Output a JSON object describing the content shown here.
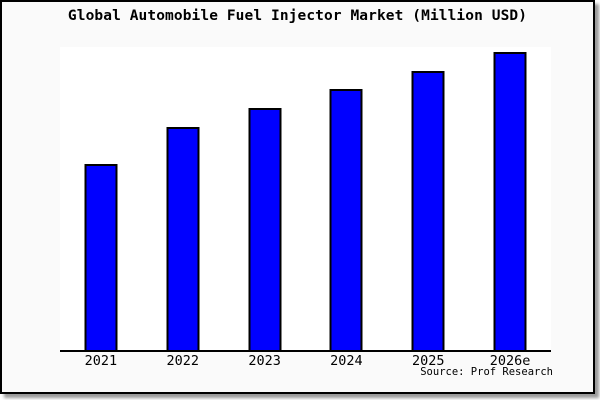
{
  "window": {
    "background": "#ffffff",
    "frame_background": "#fafafa",
    "frame_border_color": "#000000",
    "shadow_color": "#999999"
  },
  "source_note": "Source: Prof Research",
  "chart_data": {
    "type": "bar",
    "title": "Global Automobile Fuel Injector Market (Million USD)",
    "categories": [
      "2021",
      "2022",
      "2023",
      "2024",
      "2025",
      "2026e"
    ],
    "values": [
      62.4,
      74.8,
      81.2,
      87.6,
      93.6,
      100
    ],
    "values_unit": "relative bar height, tallest bar (2026e) = 100; chart shows no y-axis tick labels",
    "xlabel": "",
    "ylabel": "",
    "ylim": [
      0,
      101.7
    ],
    "grid": false,
    "legend": false,
    "y_axis_visible": false,
    "bar_color": "#0000ff",
    "bar_border_color": "#000000",
    "plot_background": "#ffffff",
    "axis_color": "#000000"
  }
}
